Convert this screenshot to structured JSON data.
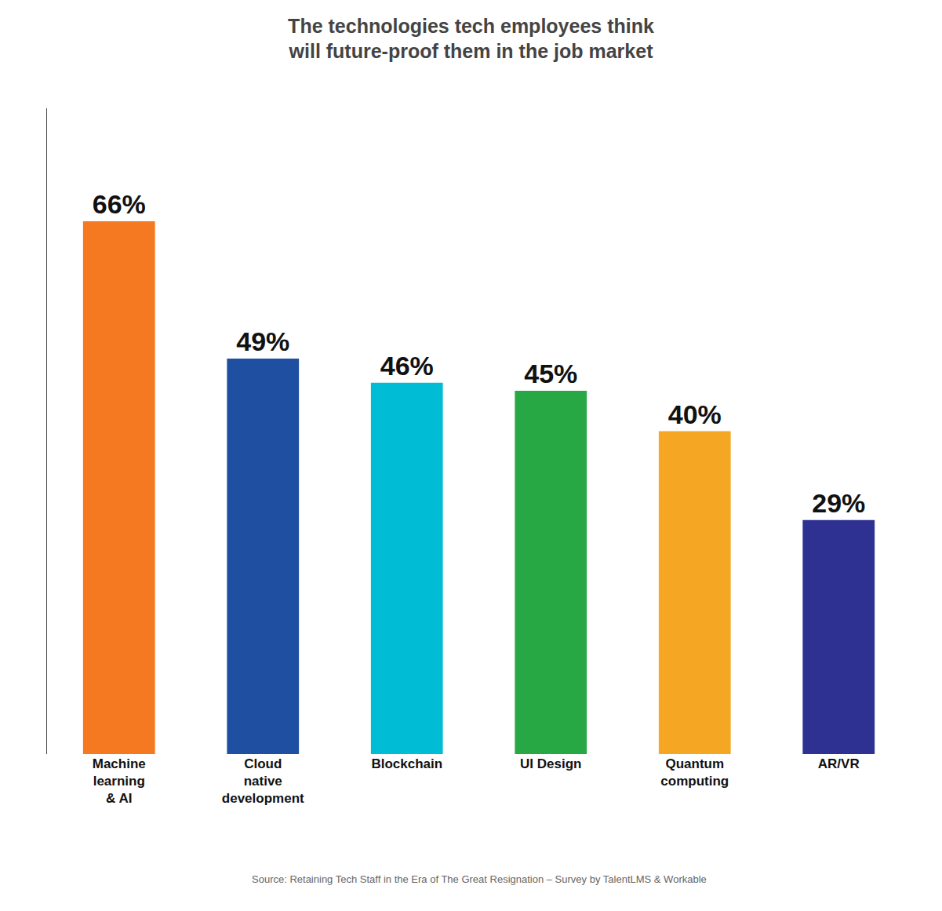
{
  "chart_data": {
    "type": "bar",
    "title": "The technologies tech employees think\nwill future-proof them in the job market",
    "categories": [
      "Machine\nlearning\n& AI",
      "Cloud\nnative\ndevelopment",
      "Blockchain",
      "UI Design",
      "Quantum\ncomputing",
      "AR/VR"
    ],
    "values": [
      66,
      49,
      46,
      45,
      40,
      29
    ],
    "value_labels": [
      "66%",
      "49%",
      "46%",
      "45%",
      "40%",
      "29%"
    ],
    "data_labels": true,
    "colors": [
      "#f47920",
      "#1e4fa0",
      "#00bcd4",
      "#27a844",
      "#f5a623",
      "#2e3192"
    ],
    "ylim": [
      0,
      80
    ],
    "tick_labels": "x",
    "grid": false,
    "annotations": [
      "Source: Retaining Tech Staff in the Era of The Great Resignation – Survey by TalentLMS & Workable"
    ]
  }
}
